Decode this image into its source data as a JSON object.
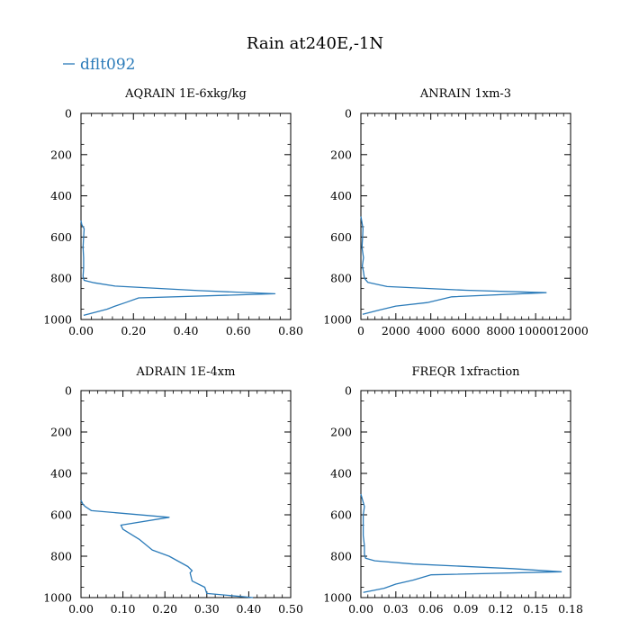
{
  "title": "Rain at240E,-1N",
  "legend": {
    "label": "dflt092",
    "color": "#2b7bb9"
  },
  "chart_data": [
    {
      "type": "line",
      "title": "AQRAIN  1E-6xkg/kg",
      "xlim": [
        0,
        0.8
      ],
      "ylim": [
        1000,
        0
      ],
      "xticks": [
        0,
        0.2,
        0.4,
        0.6,
        0.8
      ],
      "xticklabels": [
        "0.00",
        "0.20",
        "0.40",
        "0.60",
        "0.80"
      ],
      "yticks": [
        0,
        200,
        400,
        600,
        800,
        1000
      ],
      "yticklabels": [
        "0",
        "200",
        "400",
        "600",
        "800",
        "1000"
      ],
      "series": [
        {
          "name": "dflt092",
          "x": [
            0,
            0.003,
            0.012,
            0.01,
            0.008,
            0.01,
            0.01,
            0.008,
            0.012,
            0.05,
            0.13,
            0.45,
            0.74,
            0.22,
            0.17,
            0.13,
            0.1,
            0.01
          ],
          "y": [
            520,
            540,
            560,
            600,
            650,
            700,
            750,
            790,
            810,
            822,
            838,
            860,
            875,
            895,
            918,
            935,
            950,
            980
          ]
        }
      ]
    },
    {
      "type": "line",
      "title": "ANRAIN  1xm-3",
      "xlim": [
        0,
        12000
      ],
      "ylim": [
        1000,
        0
      ],
      "xticks": [
        0,
        2000,
        4000,
        6000,
        8000,
        10000,
        12000
      ],
      "xticklabels": [
        "0",
        "2000",
        "4000",
        "6000",
        "8000",
        "10000",
        "12000"
      ],
      "yticks": [
        0,
        200,
        400,
        600,
        800,
        1000
      ],
      "yticklabels": [
        "0",
        "200",
        "400",
        "600",
        "800",
        "1000"
      ],
      "series": [
        {
          "name": "dflt092",
          "x": [
            0,
            80,
            120,
            100,
            60,
            150,
            80,
            150,
            200,
            400,
            1500,
            6000,
            10600,
            5200,
            3800,
            2000,
            1000,
            100
          ],
          "y": [
            500,
            540,
            560,
            600,
            650,
            700,
            740,
            770,
            800,
            820,
            840,
            858,
            870,
            890,
            918,
            935,
            955,
            975
          ]
        }
      ]
    },
    {
      "type": "line",
      "title": "ADRAIN  1E-4xm",
      "xlim": [
        0,
        0.5
      ],
      "ylim": [
        1000,
        0
      ],
      "xticks": [
        0,
        0.1,
        0.2,
        0.3,
        0.4,
        0.5
      ],
      "xticklabels": [
        "0.00",
        "0.10",
        "0.20",
        "0.30",
        "0.40",
        "0.50"
      ],
      "yticks": [
        0,
        200,
        400,
        600,
        800,
        1000
      ],
      "yticklabels": [
        "0",
        "200",
        "400",
        "600",
        "800",
        "1000"
      ],
      "series": [
        {
          "name": "dflt092",
          "x": [
            0,
            0.005,
            0.01,
            0.025,
            0.21,
            0.095,
            0.1,
            0.14,
            0.17,
            0.21,
            0.255,
            0.265,
            0.26,
            0.265,
            0.295,
            0.3,
            0.41
          ],
          "y": [
            530,
            550,
            560,
            580,
            612,
            650,
            670,
            720,
            770,
            800,
            850,
            870,
            880,
            920,
            950,
            980,
            1000
          ]
        }
      ]
    },
    {
      "type": "line",
      "title": "FREQR  1xfraction",
      "xlim": [
        0,
        0.18
      ],
      "ylim": [
        1000,
        0
      ],
      "xticks": [
        0,
        0.03,
        0.06,
        0.09,
        0.12,
        0.15,
        0.18
      ],
      "xticklabels": [
        "0.00",
        "0.03",
        "0.06",
        "0.09",
        "0.12",
        "0.15",
        "0.18"
      ],
      "yticks": [
        0,
        200,
        400,
        600,
        800,
        1000
      ],
      "yticklabels": [
        "0",
        "200",
        "400",
        "600",
        "800",
        "1000"
      ],
      "series": [
        {
          "name": "dflt092",
          "x": [
            0,
            0.002,
            0.003,
            0.002,
            0.002,
            0.002,
            0.003,
            0.003,
            0.004,
            0.012,
            0.045,
            0.13,
            0.172,
            0.06,
            0.045,
            0.03,
            0.02,
            0.002
          ],
          "y": [
            500,
            540,
            560,
            600,
            650,
            700,
            750,
            790,
            810,
            822,
            838,
            860,
            875,
            890,
            915,
            935,
            955,
            975
          ]
        }
      ]
    }
  ]
}
